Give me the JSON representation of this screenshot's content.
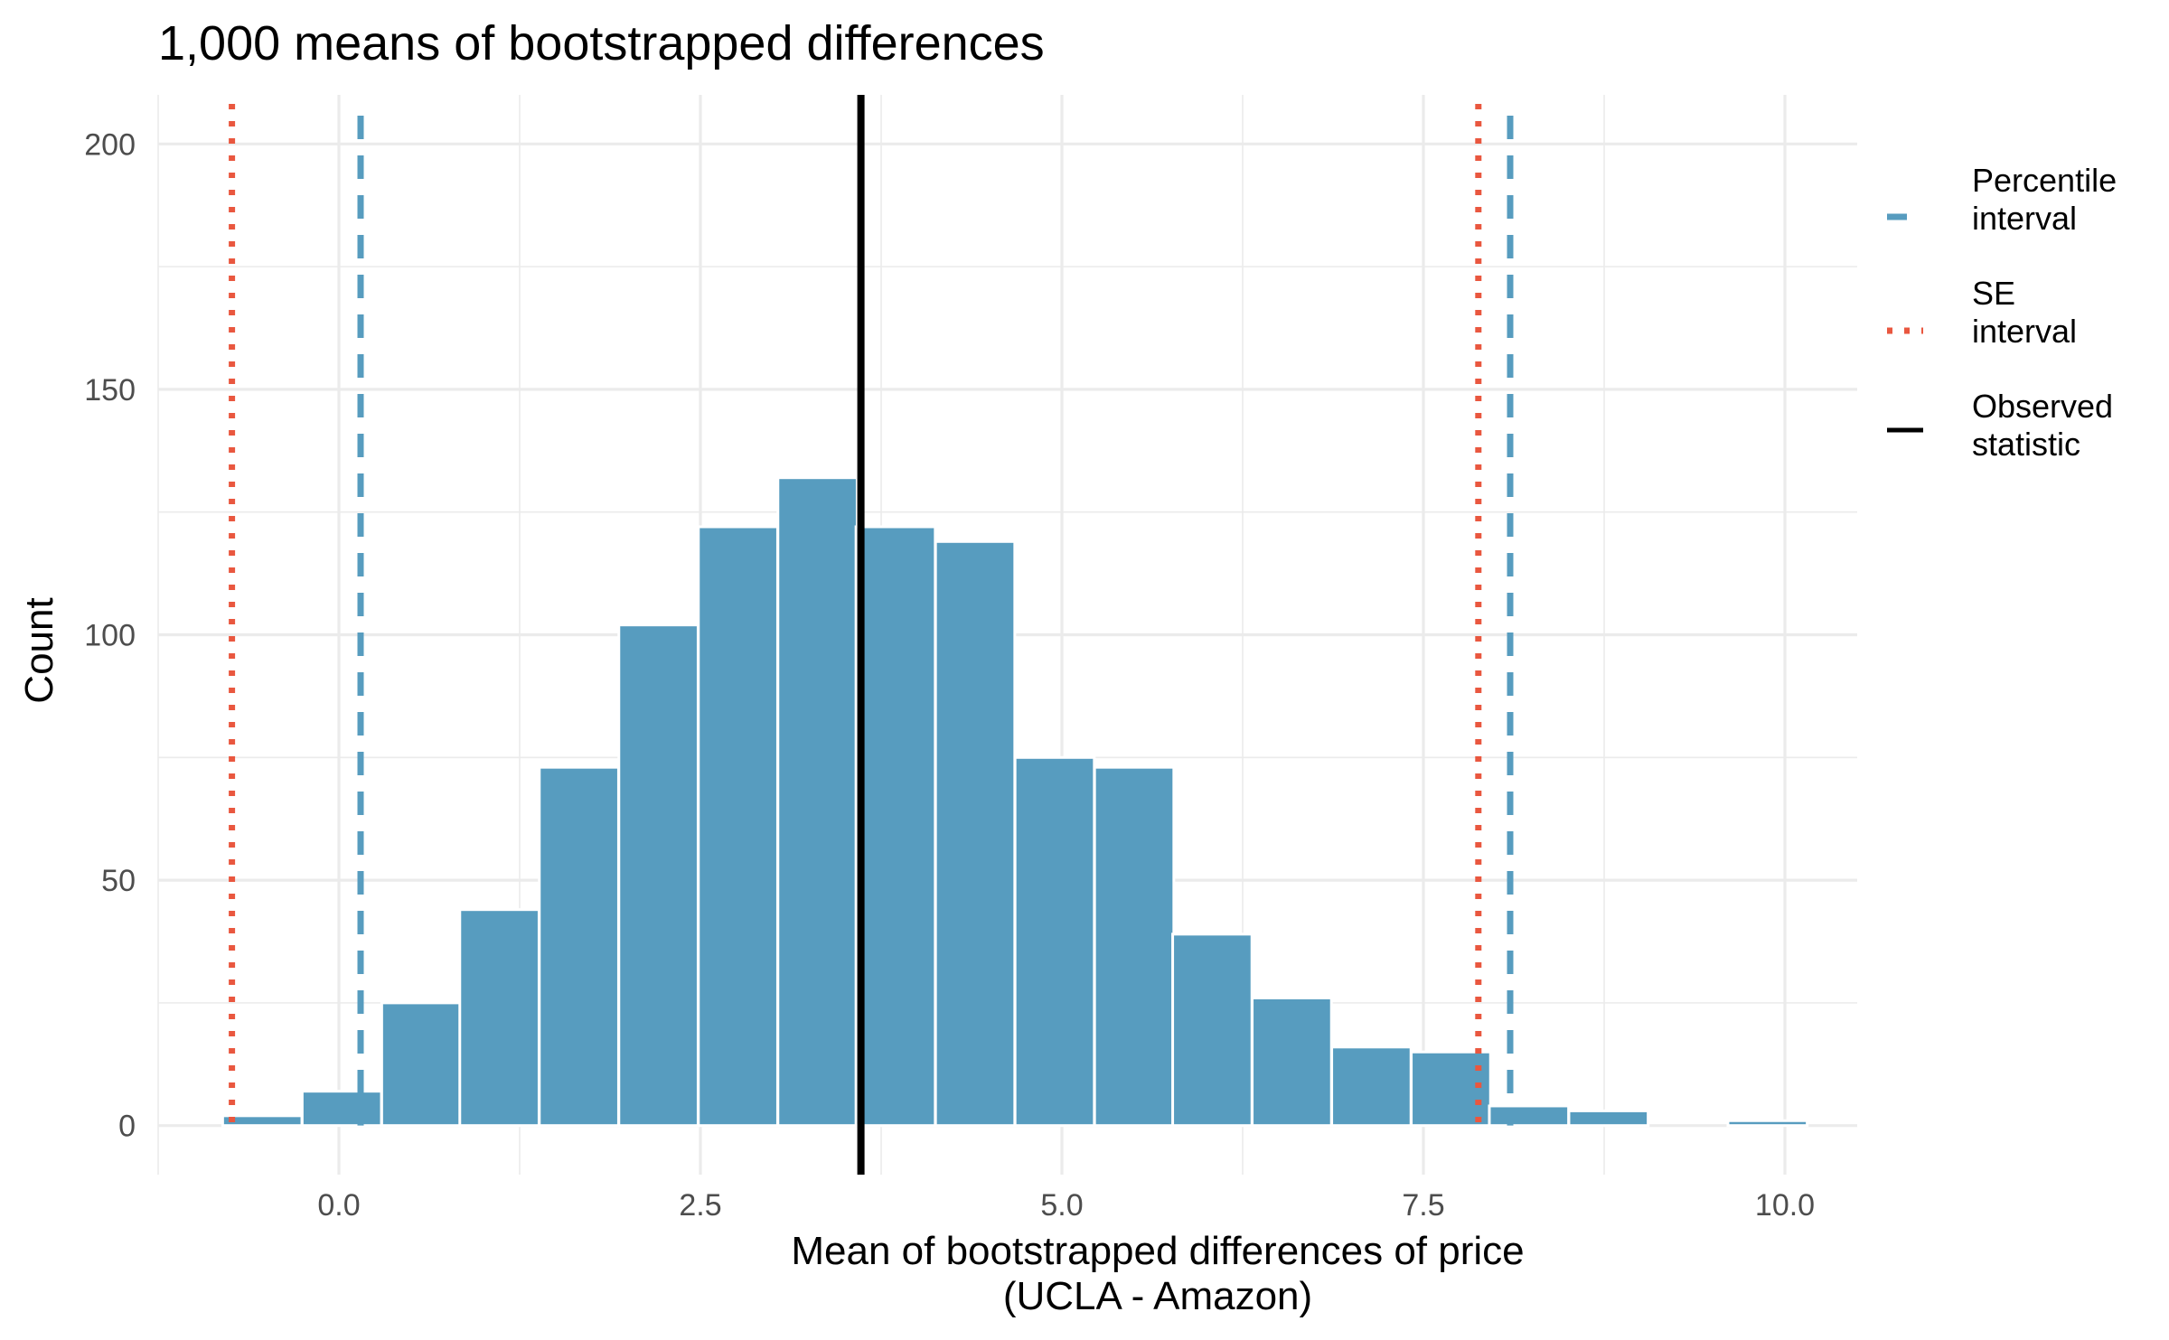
{
  "chart_data": {
    "type": "bar",
    "title": "1,000 means of bootstrapped differences",
    "xlabel_line1": "Mean of bootstrapped differences of price",
    "xlabel_line2": "(UCLA - Amazon)",
    "ylabel": "Count",
    "xlim": [
      -1.25,
      10.5
    ],
    "ylim": [
      -10,
      210
    ],
    "xticks": [
      0.0,
      2.5,
      5.0,
      7.5,
      10.0
    ],
    "xtick_labels": [
      "0.0",
      "2.5",
      "5.0",
      "7.5",
      "10.0"
    ],
    "yticks": [
      0,
      50,
      100,
      150,
      200
    ],
    "ytick_labels": [
      "0",
      "50",
      "100",
      "150",
      "200"
    ],
    "grid": true,
    "bin_width": 0.548,
    "bins": [
      {
        "x": -0.53,
        "count": 2
      },
      {
        "x": 0.02,
        "count": 7
      },
      {
        "x": 0.57,
        "count": 25
      },
      {
        "x": 1.11,
        "count": 44
      },
      {
        "x": 1.66,
        "count": 73
      },
      {
        "x": 2.21,
        "count": 102
      },
      {
        "x": 2.76,
        "count": 122
      },
      {
        "x": 3.31,
        "count": 132
      },
      {
        "x": 3.85,
        "count": 122
      },
      {
        "x": 4.4,
        "count": 119
      },
      {
        "x": 4.95,
        "count": 75
      },
      {
        "x": 5.5,
        "count": 73
      },
      {
        "x": 6.04,
        "count": 39
      },
      {
        "x": 6.59,
        "count": 26
      },
      {
        "x": 7.14,
        "count": 16
      },
      {
        "x": 7.69,
        "count": 15
      },
      {
        "x": 8.23,
        "count": 4
      },
      {
        "x": 8.78,
        "count": 3
      },
      {
        "x": 9.33,
        "count": 0
      },
      {
        "x": 9.88,
        "count": 1
      }
    ],
    "bar_color": "#579CBF",
    "observed_statistic": 3.61,
    "percentile_interval": [
      0.15,
      8.1
    ],
    "se_interval": [
      -0.74,
      7.88
    ],
    "line_colors": {
      "percentile": "#579CBF",
      "se": "#E9573F",
      "observed": "#000000"
    },
    "legend_position": "right",
    "legend": [
      {
        "key": "percentile",
        "line1": "Percentile",
        "line2": "interval"
      },
      {
        "key": "se",
        "line1": "SE",
        "line2": "interval"
      },
      {
        "key": "observed",
        "line1": "Observed",
        "line2": "statistic"
      }
    ]
  }
}
